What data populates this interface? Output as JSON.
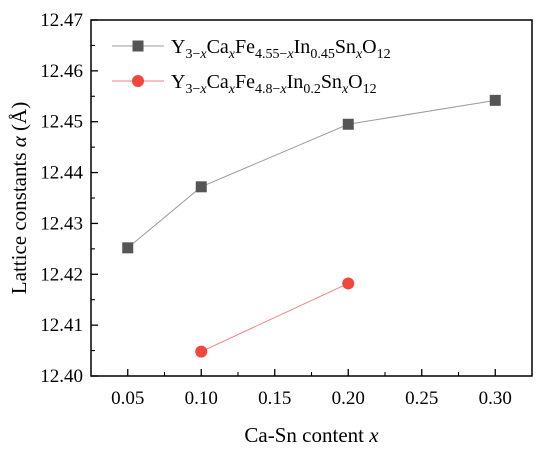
{
  "chart_data": {
    "type": "line",
    "xlabel": {
      "text": "Ca-Sn content ",
      "var": "x"
    },
    "ylabel": {
      "text": "Lattice constants ",
      "var": "α",
      "unit": " (Å)"
    },
    "xlim": [
      0.025,
      0.325
    ],
    "ylim": [
      12.4,
      12.47
    ],
    "x_ticks": [
      0.05,
      0.1,
      0.15,
      0.2,
      0.25,
      0.3
    ],
    "x_tick_labels": [
      "0.05",
      "0.10",
      "0.15",
      "0.20",
      "0.25",
      "0.30"
    ],
    "y_ticks": [
      12.4,
      12.41,
      12.42,
      12.43,
      12.44,
      12.45,
      12.46,
      12.47
    ],
    "y_tick_labels": [
      "12.40",
      "12.41",
      "12.42",
      "12.43",
      "12.44",
      "12.45",
      "12.46",
      "12.47"
    ],
    "grid": false,
    "legend_position": "top-left",
    "series": [
      {
        "name": "Y3−xCaxFe4.55−xIn0.45SnxO12",
        "legend_parts": [
          [
            "Y",
            "n"
          ],
          [
            "3−",
            "sub"
          ],
          [
            "x",
            "subi"
          ],
          [
            "Ca",
            "n"
          ],
          [
            "x",
            "subi"
          ],
          [
            "Fe",
            "n"
          ],
          [
            "4.55−",
            "sub"
          ],
          [
            "x",
            "subi"
          ],
          [
            "In",
            "n"
          ],
          [
            "0.45",
            "sub"
          ],
          [
            "Sn",
            "n"
          ],
          [
            "x",
            "subi"
          ],
          [
            "O",
            "n"
          ],
          [
            "12",
            "sub"
          ]
        ],
        "marker": "square",
        "color": "#555555",
        "line_color": "#9a9a9a",
        "x": [
          0.05,
          0.1,
          0.2,
          0.3
        ],
        "y": [
          12.4252,
          12.4372,
          12.4495,
          12.4542
        ]
      },
      {
        "name": "Y3−xCaxFe4.8−xIn0.2SnxO12",
        "legend_parts": [
          [
            "Y",
            "n"
          ],
          [
            "3−",
            "sub"
          ],
          [
            "x",
            "subi"
          ],
          [
            "Ca",
            "n"
          ],
          [
            "x",
            "subi"
          ],
          [
            "Fe",
            "n"
          ],
          [
            "4.8−",
            "sub"
          ],
          [
            "x",
            "subi"
          ],
          [
            "In",
            "n"
          ],
          [
            "0.2",
            "sub"
          ],
          [
            "Sn",
            "n"
          ],
          [
            "x",
            "subi"
          ],
          [
            "O",
            "n"
          ],
          [
            "12",
            "sub"
          ]
        ],
        "marker": "circle",
        "color": "#f0463c",
        "line_color": "#f28080",
        "x": [
          0.1,
          0.2
        ],
        "y": [
          12.4048,
          12.4182
        ]
      }
    ]
  }
}
